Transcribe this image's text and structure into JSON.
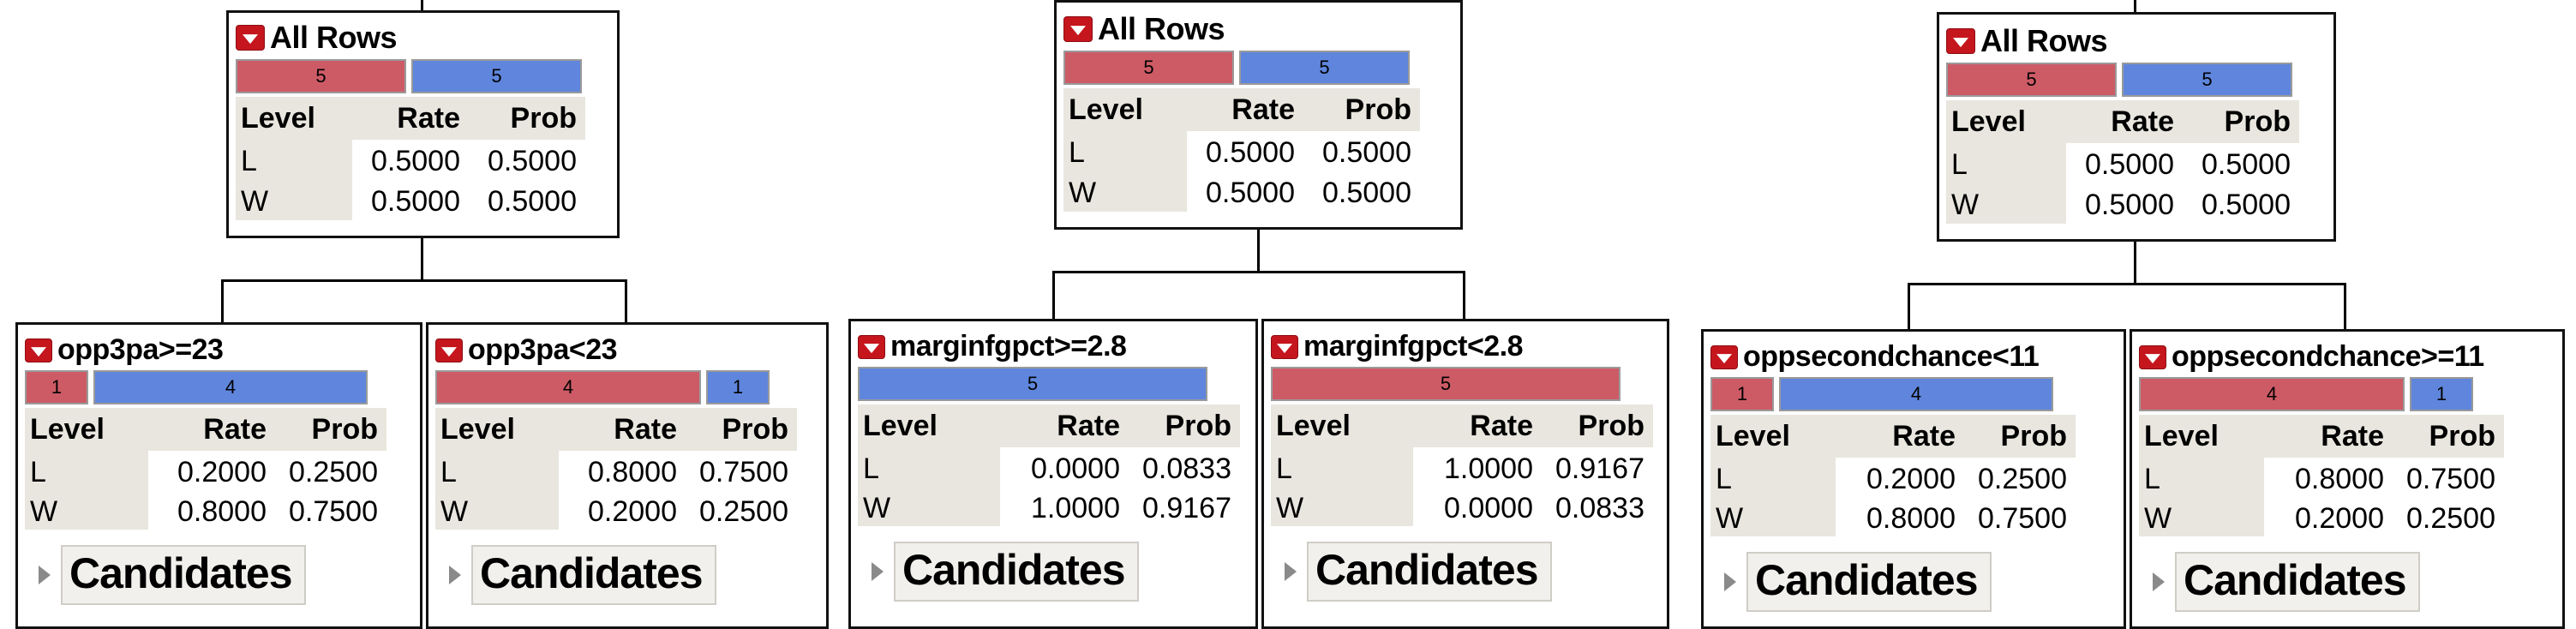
{
  "trees": [
    {
      "root": {
        "title": "All Rows",
        "bar_L": "5",
        "bar_W": "5",
        "headers": [
          "Level",
          "Rate",
          "Prob"
        ],
        "rows": [
          {
            "level": "L",
            "rate": "0.5000",
            "prob": "0.5000"
          },
          {
            "level": "W",
            "rate": "0.5000",
            "prob": "0.5000"
          }
        ]
      },
      "children": [
        {
          "title": "opp3pa>=23",
          "bar_L": "1",
          "bar_W": "4",
          "headers": [
            "Level",
            "Rate",
            "Prob"
          ],
          "rows": [
            {
              "level": "L",
              "rate": "0.2000",
              "prob": "0.2500"
            },
            {
              "level": "W",
              "rate": "0.8000",
              "prob": "0.7500"
            }
          ],
          "candidates": "Candidates"
        },
        {
          "title": "opp3pa<23",
          "bar_L": "4",
          "bar_W": "1",
          "headers": [
            "Level",
            "Rate",
            "Prob"
          ],
          "rows": [
            {
              "level": "L",
              "rate": "0.8000",
              "prob": "0.7500"
            },
            {
              "level": "W",
              "rate": "0.2000",
              "prob": "0.2500"
            }
          ],
          "candidates": "Candidates"
        }
      ]
    },
    {
      "root": {
        "title": "All Rows",
        "bar_L": "5",
        "bar_W": "5",
        "headers": [
          "Level",
          "Rate",
          "Prob"
        ],
        "rows": [
          {
            "level": "L",
            "rate": "0.5000",
            "prob": "0.5000"
          },
          {
            "level": "W",
            "rate": "0.5000",
            "prob": "0.5000"
          }
        ]
      },
      "children": [
        {
          "title": "marginfgpct>=2.8",
          "bar_L": "",
          "bar_W": "5",
          "headers": [
            "Level",
            "Rate",
            "Prob"
          ],
          "rows": [
            {
              "level": "L",
              "rate": "0.0000",
              "prob": "0.0833"
            },
            {
              "level": "W",
              "rate": "1.0000",
              "prob": "0.9167"
            }
          ],
          "candidates": "Candidates"
        },
        {
          "title": "marginfgpct<2.8",
          "bar_L": "5",
          "bar_W": "",
          "headers": [
            "Level",
            "Rate",
            "Prob"
          ],
          "rows": [
            {
              "level": "L",
              "rate": "1.0000",
              "prob": "0.9167"
            },
            {
              "level": "W",
              "rate": "0.0000",
              "prob": "0.0833"
            }
          ],
          "candidates": "Candidates"
        }
      ]
    },
    {
      "root": {
        "title": "All Rows",
        "bar_L": "5",
        "bar_W": "5",
        "headers": [
          "Level",
          "Rate",
          "Prob"
        ],
        "rows": [
          {
            "level": "L",
            "rate": "0.5000",
            "prob": "0.5000"
          },
          {
            "level": "W",
            "rate": "0.5000",
            "prob": "0.5000"
          }
        ]
      },
      "children": [
        {
          "title": "oppsecondchance<11",
          "bar_L": "1",
          "bar_W": "4",
          "headers": [
            "Level",
            "Rate",
            "Prob"
          ],
          "rows": [
            {
              "level": "L",
              "rate": "0.2000",
              "prob": "0.2500"
            },
            {
              "level": "W",
              "rate": "0.8000",
              "prob": "0.7500"
            }
          ],
          "candidates": "Candidates"
        },
        {
          "title": "oppsecondchance>=11",
          "bar_L": "4",
          "bar_W": "1",
          "headers": [
            "Level",
            "Rate",
            "Prob"
          ],
          "rows": [
            {
              "level": "L",
              "rate": "0.8000",
              "prob": "0.7500"
            },
            {
              "level": "W",
              "rate": "0.2000",
              "prob": "0.2500"
            }
          ],
          "candidates": "Candidates"
        }
      ]
    }
  ],
  "colors": {
    "level_L": "#cd5b66",
    "level_W": "#5f86dc",
    "header_bg": "#e8e6de",
    "menu_triangle": "#c5161d"
  },
  "icons": {
    "menu": "red-dropdown-triangle-icon",
    "disclosure": "disclosure-triangle-icon"
  }
}
